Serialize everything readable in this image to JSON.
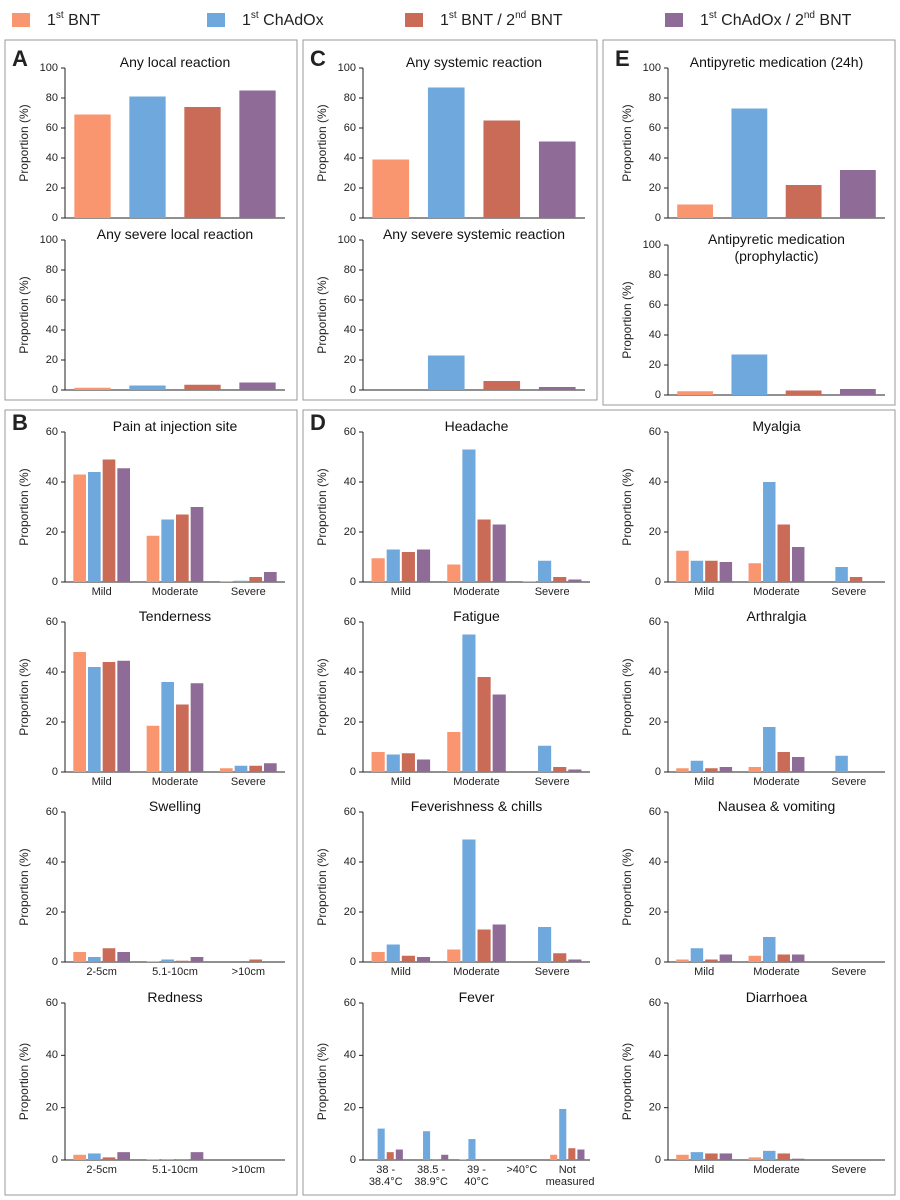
{
  "legend": [
    {
      "name": "1st BNT",
      "color": "#f9956f"
    },
    {
      "name": "1st ChAdOx",
      "color": "#6fa8dc"
    },
    {
      "name": "1st BNT / 2nd BNT",
      "color": "#c96b56"
    },
    {
      "name": "1st ChAdOx / 2nd BNT",
      "color": "#8f6b97"
    }
  ],
  "chart_data": [
    {
      "type": "bar",
      "panel": "A",
      "title": "Any local reaction",
      "ylabel": "Proportion (%)",
      "values": [
        69,
        81,
        74,
        85
      ],
      "ylim": [
        0,
        100
      ],
      "yticks": [
        0,
        20,
        40,
        60,
        80,
        100
      ]
    },
    {
      "type": "bar",
      "title": "Any severe local reaction",
      "ylabel": "Proportion (%)",
      "values": [
        1.5,
        3,
        3.5,
        5
      ],
      "ylim": [
        0,
        100
      ],
      "yticks": [
        0,
        20,
        40,
        60,
        80,
        100
      ]
    },
    {
      "type": "bar",
      "panel": "C",
      "title": "Any systemic reaction",
      "ylabel": "Proportion (%)",
      "values": [
        39,
        87,
        65,
        51
      ],
      "ylim": [
        0,
        100
      ],
      "yticks": [
        0,
        20,
        40,
        60,
        80,
        100
      ]
    },
    {
      "type": "bar",
      "title": "Any severe systemic reaction",
      "ylabel": "Proportion (%)",
      "values": [
        0,
        23,
        6,
        2
      ],
      "ylim": [
        0,
        100
      ],
      "yticks": [
        0,
        20,
        40,
        60,
        80,
        100
      ]
    },
    {
      "type": "bar",
      "panel": "E",
      "title": "Antipyretic medication (24h)",
      "ylabel": "Proportion (%)",
      "values": [
        9,
        73,
        22,
        32
      ],
      "ylim": [
        0,
        100
      ],
      "yticks": [
        0,
        20,
        40,
        60,
        80,
        100
      ]
    },
    {
      "type": "bar",
      "title": "Antipyretic medication (prophylactic)",
      "ylabel": "Proportion (%)",
      "values": [
        2.5,
        27,
        3,
        4
      ],
      "ylim": [
        0,
        100
      ],
      "yticks": [
        0,
        20,
        40,
        60,
        80,
        100
      ]
    },
    {
      "type": "bar",
      "panel": "B",
      "title": "Pain at injection site",
      "ylabel": "Proportion (%)",
      "categories": [
        "Mild",
        "Moderate",
        "Severe"
      ],
      "series": [
        {
          "values": [
            43,
            18.5,
            0.3
          ]
        },
        {
          "values": [
            44,
            25,
            0.5
          ]
        },
        {
          "values": [
            49,
            27,
            2
          ]
        },
        {
          "values": [
            45.5,
            30,
            4
          ]
        }
      ],
      "ylim": [
        0,
        60
      ],
      "yticks": [
        0,
        20,
        40,
        60
      ]
    },
    {
      "type": "bar",
      "title": "Tenderness",
      "ylabel": "Proportion (%)",
      "categories": [
        "Mild",
        "Moderate",
        "Severe"
      ],
      "series": [
        {
          "values": [
            48,
            18.5,
            1.5
          ]
        },
        {
          "values": [
            42,
            36,
            2.5
          ]
        },
        {
          "values": [
            44,
            27,
            2.5
          ]
        },
        {
          "values": [
            44.5,
            35.5,
            3.5
          ]
        }
      ],
      "ylim": [
        0,
        60
      ],
      "yticks": [
        0,
        20,
        40,
        60
      ]
    },
    {
      "type": "bar",
      "title": "Swelling",
      "ylabel": "Proportion (%)",
      "categories": [
        "2-5cm",
        "5.1-10cm",
        ">10cm"
      ],
      "series": [
        {
          "values": [
            4,
            0.3,
            0
          ]
        },
        {
          "values": [
            2,
            1,
            0
          ]
        },
        {
          "values": [
            5.5,
            0.5,
            1
          ]
        },
        {
          "values": [
            4,
            2,
            0
          ]
        }
      ],
      "ylim": [
        0,
        60
      ],
      "yticks": [
        0,
        20,
        40,
        60
      ]
    },
    {
      "type": "bar",
      "title": "Redness",
      "ylabel": "Proportion (%)",
      "categories": [
        "2-5cm",
        "5.1-10cm",
        ">10cm"
      ],
      "series": [
        {
          "values": [
            2,
            0.3,
            0
          ]
        },
        {
          "values": [
            2.5,
            0.3,
            0
          ]
        },
        {
          "values": [
            1,
            0.3,
            0
          ]
        },
        {
          "values": [
            3,
            3,
            0
          ]
        }
      ],
      "ylim": [
        0,
        60
      ],
      "yticks": [
        0,
        20,
        40,
        60
      ]
    },
    {
      "type": "bar",
      "panel": "D",
      "title": "Headache",
      "ylabel": "Proportion (%)",
      "categories": [
        "Mild",
        "Moderate",
        "Severe"
      ],
      "series": [
        {
          "values": [
            9.5,
            7,
            0.3
          ]
        },
        {
          "values": [
            13,
            53,
            8.5
          ]
        },
        {
          "values": [
            12,
            25,
            2
          ]
        },
        {
          "values": [
            13,
            23,
            1
          ]
        }
      ],
      "ylim": [
        0,
        60
      ],
      "yticks": [
        0,
        20,
        40,
        60
      ]
    },
    {
      "type": "bar",
      "title": "Myalgia",
      "ylabel": "Proportion (%)",
      "categories": [
        "Mild",
        "Moderate",
        "Severe"
      ],
      "series": [
        {
          "values": [
            12.5,
            7.5,
            0
          ]
        },
        {
          "values": [
            8.5,
            40,
            6
          ]
        },
        {
          "values": [
            8.5,
            23,
            2
          ]
        },
        {
          "values": [
            8,
            14,
            0
          ]
        }
      ],
      "ylim": [
        0,
        60
      ],
      "yticks": [
        0,
        20,
        40,
        60
      ]
    },
    {
      "type": "bar",
      "title": "Fatigue",
      "ylabel": "Proportion (%)",
      "categories": [
        "Mild",
        "Moderate",
        "Severe"
      ],
      "series": [
        {
          "values": [
            8,
            16,
            0
          ]
        },
        {
          "values": [
            7,
            55,
            10.5
          ]
        },
        {
          "values": [
            7.5,
            38,
            2
          ]
        },
        {
          "values": [
            5,
            31,
            1
          ]
        }
      ],
      "ylim": [
        0,
        60
      ],
      "yticks": [
        0,
        20,
        40,
        60
      ]
    },
    {
      "type": "bar",
      "title": "Arthralgia",
      "ylabel": "Proportion (%)",
      "categories": [
        "Mild",
        "Moderate",
        "Severe"
      ],
      "series": [
        {
          "values": [
            1.5,
            2,
            0
          ]
        },
        {
          "values": [
            4.5,
            18,
            6.5
          ]
        },
        {
          "values": [
            1.5,
            8,
            0
          ]
        },
        {
          "values": [
            2,
            6,
            0
          ]
        }
      ],
      "ylim": [
        0,
        60
      ],
      "yticks": [
        0,
        20,
        40,
        60
      ]
    },
    {
      "type": "bar",
      "title": "Feverishness & chills",
      "ylabel": "Proportion (%)",
      "categories": [
        "Mild",
        "Moderate",
        "Severe"
      ],
      "series": [
        {
          "values": [
            4,
            5,
            0
          ]
        },
        {
          "values": [
            7,
            49,
            14
          ]
        },
        {
          "values": [
            2.5,
            13,
            3.5
          ]
        },
        {
          "values": [
            2,
            15,
            1
          ]
        }
      ],
      "ylim": [
        0,
        60
      ],
      "yticks": [
        0,
        20,
        40,
        60
      ]
    },
    {
      "type": "bar",
      "title": "Nausea & vomiting",
      "ylabel": "Proportion (%)",
      "categories": [
        "Mild",
        "Moderate",
        "Severe"
      ],
      "series": [
        {
          "values": [
            1,
            2.5,
            0
          ]
        },
        {
          "values": [
            5.5,
            10,
            0
          ]
        },
        {
          "values": [
            1,
            3,
            0
          ]
        },
        {
          "values": [
            3,
            3,
            0
          ]
        }
      ],
      "ylim": [
        0,
        60
      ],
      "yticks": [
        0,
        20,
        40,
        60
      ]
    },
    {
      "type": "bar",
      "title": "Fever",
      "ylabel": "Proportion (%)",
      "categories": [
        "38 - 38.4°C",
        "38.5 - 38.9°C",
        "39 - 40°C",
        ">40°C",
        "Not measured"
      ],
      "series": [
        {
          "values": [
            0,
            0,
            0.3,
            0,
            2
          ]
        },
        {
          "values": [
            12,
            11,
            8,
            0,
            19.5
          ]
        },
        {
          "values": [
            3,
            0.3,
            0,
            0,
            4.5
          ]
        },
        {
          "values": [
            4,
            2,
            0,
            0,
            4
          ]
        }
      ],
      "ylim": [
        0,
        60
      ],
      "yticks": [
        0,
        20,
        40,
        60
      ]
    },
    {
      "type": "bar",
      "title": "Diarrhoea",
      "ylabel": "Proportion (%)",
      "categories": [
        "Mild",
        "Moderate",
        "Severe"
      ],
      "series": [
        {
          "values": [
            2,
            1,
            0
          ]
        },
        {
          "values": [
            3,
            3.5,
            0
          ]
        },
        {
          "values": [
            2.5,
            2.5,
            0
          ]
        },
        {
          "values": [
            2.5,
            0.5,
            0
          ]
        }
      ],
      "ylim": [
        0,
        60
      ],
      "yticks": [
        0,
        20,
        40,
        60
      ]
    }
  ]
}
